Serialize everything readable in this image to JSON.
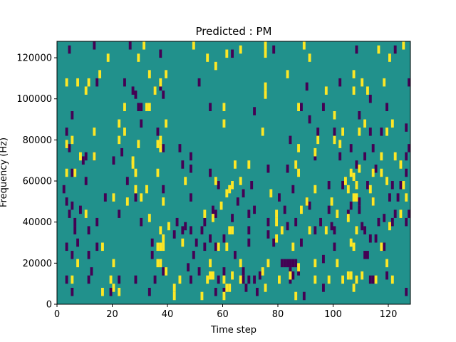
{
  "chart_data": {
    "type": "heatmap",
    "title": "Predicted : PM",
    "xlabel": "Time step",
    "ylabel": "Frequency (Hz)",
    "xlim": [
      0,
      128
    ],
    "ylim": [
      0,
      128000
    ],
    "x_ticks": [
      "0",
      "20",
      "40",
      "60",
      "80",
      "100",
      "120"
    ],
    "x_tick_values": [
      0,
      20,
      40,
      60,
      80,
      100,
      120
    ],
    "y_ticks": [
      "0",
      "20000",
      "40000",
      "60000",
      "80000",
      "100000",
      "120000"
    ],
    "y_tick_values": [
      0,
      20000,
      40000,
      60000,
      80000,
      100000,
      120000
    ],
    "colormap": "viridis",
    "grid": false,
    "colors": {
      "low": "#440154",
      "mid": "#21918c",
      "high": "#fde725"
    },
    "background_value": 0,
    "bin_height_hz": 4000,
    "cells_high": [
      [
        31,
        124000
      ],
      [
        75,
        124000
      ],
      [
        49,
        124000
      ],
      [
        66,
        122000
      ],
      [
        89,
        124000
      ],
      [
        116,
        122000
      ],
      [
        125,
        124000
      ],
      [
        18,
        118000
      ],
      [
        29,
        118000
      ],
      [
        54,
        118000
      ],
      [
        61,
        120000
      ],
      [
        75,
        120000
      ],
      [
        91,
        118000
      ],
      [
        120,
        118000
      ],
      [
        57,
        114000
      ],
      [
        15,
        110000
      ],
      [
        33,
        110000
      ],
      [
        39,
        110000
      ],
      [
        83,
        110000
      ],
      [
        107,
        110000
      ],
      [
        3,
        106000
      ],
      [
        7,
        106000
      ],
      [
        11,
        106000
      ],
      [
        37,
        106000
      ],
      [
        75,
        104000
      ],
      [
        110,
        106000
      ],
      [
        118,
        106000
      ],
      [
        10,
        102000
      ],
      [
        35,
        102000
      ],
      [
        75,
        100000
      ],
      [
        97,
        102000
      ],
      [
        107,
        102000
      ],
      [
        112,
        102000
      ],
      [
        32,
        94000
      ],
      [
        33,
        94000
      ],
      [
        24,
        94000
      ],
      [
        60,
        94000
      ],
      [
        87,
        94000
      ],
      [
        100,
        90000
      ],
      [
        22,
        86000
      ],
      [
        39,
        86000
      ],
      [
        60,
        86000
      ],
      [
        111,
        86000
      ],
      [
        121,
        86000
      ],
      [
        13,
        82000
      ],
      [
        24,
        82000
      ],
      [
        74,
        82000
      ],
      [
        103,
        82000
      ],
      [
        109,
        82000
      ],
      [
        119,
        82000
      ],
      [
        3,
        76000
      ],
      [
        5,
        78000
      ],
      [
        22,
        78000
      ],
      [
        37,
        78000
      ],
      [
        29,
        76000
      ],
      [
        36,
        76000
      ],
      [
        94,
        78000
      ],
      [
        100,
        78000
      ],
      [
        102,
        76000
      ],
      [
        8,
        70000
      ],
      [
        13,
        70000
      ],
      [
        27,
        68000
      ],
      [
        37,
        74000
      ],
      [
        87,
        74000
      ],
      [
        93,
        72000
      ],
      [
        117,
        70000
      ],
      [
        122,
        70000
      ],
      [
        3,
        62000
      ],
      [
        6,
        62000
      ],
      [
        27,
        66000
      ],
      [
        28,
        62000
      ],
      [
        36,
        62000
      ],
      [
        64,
        66000
      ],
      [
        69,
        66000
      ],
      [
        86,
        66000
      ],
      [
        87,
        62000
      ],
      [
        106,
        62000
      ],
      [
        107,
        60000
      ],
      [
        109,
        64000
      ],
      [
        114,
        62000
      ],
      [
        117,
        62000
      ],
      [
        124,
        66000
      ],
      [
        28,
        54000
      ],
      [
        32,
        54000
      ],
      [
        46,
        58000
      ],
      [
        57,
        58000
      ],
      [
        62,
        54000
      ],
      [
        63,
        56000
      ],
      [
        66,
        58000
      ],
      [
        93,
        54000
      ],
      [
        104,
        58000
      ],
      [
        105,
        54000
      ],
      [
        108,
        56000
      ],
      [
        113,
        54000
      ],
      [
        119,
        58000
      ],
      [
        125,
        56000
      ],
      [
        20,
        50000
      ],
      [
        25,
        48000
      ],
      [
        30,
        50000
      ],
      [
        38,
        48000
      ],
      [
        61,
        52000
      ],
      [
        77,
        52000
      ],
      [
        90,
        48000
      ],
      [
        99,
        48000
      ],
      [
        107,
        50000
      ],
      [
        108,
        50000
      ],
      [
        114,
        48000
      ],
      [
        126,
        50000
      ],
      [
        10,
        42000
      ],
      [
        33,
        40000
      ],
      [
        53,
        42000
      ],
      [
        56,
        40000
      ],
      [
        59,
        46000
      ],
      [
        79,
        42000
      ],
      [
        88,
        44000
      ],
      [
        101,
        42000
      ],
      [
        105,
        40000
      ],
      [
        124,
        42000
      ],
      [
        37,
        34000
      ],
      [
        38,
        30000
      ],
      [
        40,
        36000
      ],
      [
        62,
        34000
      ],
      [
        63,
        34000
      ],
      [
        79,
        38000
      ],
      [
        81,
        34000
      ],
      [
        91,
        34000
      ],
      [
        97,
        34000
      ],
      [
        108,
        34000
      ],
      [
        120,
        36000
      ],
      [
        16,
        26000
      ],
      [
        36,
        26000
      ],
      [
        37,
        26000
      ],
      [
        38,
        26000
      ],
      [
        45,
        28000
      ],
      [
        58,
        26000
      ],
      [
        61,
        26000
      ],
      [
        79,
        30000
      ],
      [
        85,
        26000
      ],
      [
        106,
        28000
      ],
      [
        107,
        26000
      ],
      [
        117,
        26000
      ],
      [
        7,
        18000
      ],
      [
        20,
        18000
      ],
      [
        36,
        18000
      ],
      [
        37,
        18000
      ],
      [
        55,
        18000
      ],
      [
        66,
        18000
      ],
      [
        76,
        18000
      ],
      [
        87,
        16000
      ],
      [
        93,
        18000
      ],
      [
        101,
        18000
      ],
      [
        119,
        18000
      ],
      [
        39,
        14000
      ],
      [
        55,
        12000
      ],
      [
        56,
        12000
      ],
      [
        63,
        12000
      ],
      [
        74,
        14000
      ],
      [
        84,
        12000
      ],
      [
        98,
        10000
      ],
      [
        105,
        12000
      ],
      [
        106,
        12000
      ],
      [
        110,
        12000
      ],
      [
        5,
        10000
      ],
      [
        19,
        10000
      ],
      [
        42,
        6000
      ],
      [
        44,
        10000
      ],
      [
        54,
        10000
      ],
      [
        60,
        10000
      ],
      [
        61,
        6000
      ],
      [
        62,
        6000
      ],
      [
        66,
        10000
      ],
      [
        80,
        10000
      ],
      [
        93,
        10000
      ],
      [
        103,
        10000
      ],
      [
        108,
        10000
      ],
      [
        115,
        10000
      ],
      [
        121,
        10000
      ],
      [
        16,
        4000
      ],
      [
        20,
        6000
      ],
      [
        22,
        4000
      ],
      [
        42,
        2000
      ],
      [
        52,
        2000
      ],
      [
        60,
        2000
      ],
      [
        75,
        6000
      ],
      [
        86,
        2000
      ],
      [
        107,
        6000
      ]
    ],
    "cells_low": [
      [
        4,
        122000
      ],
      [
        13,
        124000
      ],
      [
        26,
        124000
      ],
      [
        37,
        120000
      ],
      [
        63,
        120000
      ],
      [
        78,
        122000
      ],
      [
        108,
        122000
      ],
      [
        122,
        122000
      ],
      [
        14,
        106000
      ],
      [
        24,
        106000
      ],
      [
        37,
        104000
      ],
      [
        51,
        106000
      ],
      [
        90,
        104000
      ],
      [
        102,
        106000
      ],
      [
        127,
        106000
      ],
      [
        27,
        102000
      ],
      [
        28,
        100000
      ],
      [
        35,
        102000
      ],
      [
        38,
        100000
      ],
      [
        113,
        98000
      ],
      [
        5,
        90000
      ],
      [
        29,
        94000
      ],
      [
        30,
        94000
      ],
      [
        55,
        94000
      ],
      [
        71,
        92000
      ],
      [
        88,
        94000
      ],
      [
        96,
        94000
      ],
      [
        119,
        94000
      ],
      [
        30,
        86000
      ],
      [
        91,
        88000
      ],
      [
        109,
        90000
      ],
      [
        126,
        84000
      ],
      [
        3,
        82000
      ],
      [
        36,
        82000
      ],
      [
        94,
        82000
      ],
      [
        100,
        82000
      ],
      [
        113,
        82000
      ],
      [
        117,
        82000
      ],
      [
        4,
        74000
      ],
      [
        23,
        72000
      ],
      [
        38,
        74000
      ],
      [
        44,
        74000
      ],
      [
        84,
        78000
      ],
      [
        106,
        74000
      ],
      [
        114,
        74000
      ],
      [
        127,
        74000
      ],
      [
        9,
        68000
      ],
      [
        10,
        70000
      ],
      [
        13,
        70000
      ],
      [
        20,
        68000
      ],
      [
        48,
        70000
      ],
      [
        93,
        70000
      ],
      [
        102,
        70000
      ],
      [
        111,
        70000
      ],
      [
        126,
        70000
      ],
      [
        5,
        62000
      ],
      [
        45,
        66000
      ],
      [
        48,
        64000
      ],
      [
        55,
        62000
      ],
      [
        76,
        64000
      ],
      [
        83,
        64000
      ],
      [
        108,
        66000
      ],
      [
        115,
        64000
      ],
      [
        126,
        62000
      ],
      [
        2,
        54000
      ],
      [
        10,
        58000
      ],
      [
        25,
        58000
      ],
      [
        38,
        54000
      ],
      [
        58,
        56000
      ],
      [
        70,
        56000
      ],
      [
        85,
        54000
      ],
      [
        98,
        56000
      ],
      [
        103,
        56000
      ],
      [
        112,
        56000
      ],
      [
        121,
        56000
      ],
      [
        124,
        56000
      ],
      [
        3,
        48000
      ],
      [
        5,
        46000
      ],
      [
        17,
        50000
      ],
      [
        28,
        50000
      ],
      [
        48,
        50000
      ],
      [
        65,
        48000
      ],
      [
        67,
        52000
      ],
      [
        80,
        50000
      ],
      [
        90,
        48000
      ],
      [
        106,
        46000
      ],
      [
        109,
        48000
      ],
      [
        114,
        48000
      ],
      [
        120,
        50000
      ],
      [
        123,
        50000
      ],
      [
        4,
        42000
      ],
      [
        8,
        44000
      ],
      [
        22,
        42000
      ],
      [
        56,
        44000
      ],
      [
        57,
        42000
      ],
      [
        63,
        40000
      ],
      [
        69,
        42000
      ],
      [
        71,
        44000
      ],
      [
        82,
        44000
      ],
      [
        91,
        46000
      ],
      [
        98,
        44000
      ],
      [
        105,
        42000
      ],
      [
        109,
        44000
      ],
      [
        118,
        40000
      ],
      [
        122,
        42000
      ],
      [
        127,
        42000
      ],
      [
        6,
        38000
      ],
      [
        14,
        38000
      ],
      [
        30,
        38000
      ],
      [
        43,
        38000
      ],
      [
        46,
        36000
      ],
      [
        48,
        34000
      ],
      [
        53,
        38000
      ],
      [
        76,
        38000
      ],
      [
        83,
        36000
      ],
      [
        86,
        38000
      ],
      [
        95,
        38000
      ],
      [
        99,
        36000
      ],
      [
        110,
        36000
      ],
      [
        116,
        38000
      ],
      [
        121,
        38000
      ],
      [
        126,
        38000
      ],
      [
        6,
        34000
      ],
      [
        11,
        34000
      ],
      [
        42,
        32000
      ],
      [
        45,
        34000
      ],
      [
        52,
        34000
      ],
      [
        55,
        30000
      ],
      [
        60,
        30000
      ],
      [
        69,
        34000
      ],
      [
        76,
        32000
      ],
      [
        93,
        34000
      ],
      [
        100,
        34000
      ],
      [
        111,
        34000
      ],
      [
        3,
        26000
      ],
      [
        7,
        28000
      ],
      [
        14,
        26000
      ],
      [
        34,
        28000
      ],
      [
        50,
        28000
      ],
      [
        53,
        26000
      ],
      [
        57,
        26000
      ],
      [
        69,
        28000
      ],
      [
        78,
        28000
      ],
      [
        88,
        28000
      ],
      [
        100,
        26000
      ],
      [
        113,
        30000
      ],
      [
        115,
        30000
      ],
      [
        118,
        26000
      ],
      [
        5,
        22000
      ],
      [
        11,
        22000
      ],
      [
        34,
        22000
      ],
      [
        49,
        22000
      ],
      [
        64,
        22000
      ],
      [
        81,
        18000
      ],
      [
        82,
        18000
      ],
      [
        83,
        18000
      ],
      [
        84,
        18000
      ],
      [
        85,
        18000
      ],
      [
        86,
        18000
      ],
      [
        87,
        14000
      ],
      [
        96,
        20000
      ],
      [
        111,
        22000
      ],
      [
        112,
        22000
      ],
      [
        12,
        14000
      ],
      [
        38,
        14000
      ],
      [
        47,
        16000
      ],
      [
        51,
        14000
      ],
      [
        60,
        14000
      ],
      [
        67,
        14000
      ],
      [
        69,
        10000
      ],
      [
        73,
        12000
      ],
      [
        84,
        14000
      ],
      [
        85,
        12000
      ],
      [
        119,
        12000
      ],
      [
        3,
        10000
      ],
      [
        11,
        10000
      ],
      [
        22,
        10000
      ],
      [
        28,
        10000
      ],
      [
        35,
        10000
      ],
      [
        48,
        10000
      ],
      [
        58,
        10000
      ],
      [
        67,
        10000
      ],
      [
        71,
        10000
      ],
      [
        84,
        10000
      ],
      [
        108,
        10000
      ],
      [
        113,
        10000
      ],
      [
        114,
        10000
      ],
      [
        5,
        4000
      ],
      [
        19,
        4000
      ],
      [
        33,
        4000
      ],
      [
        57,
        4000
      ],
      [
        60,
        4000
      ],
      [
        68,
        6000
      ],
      [
        72,
        4000
      ],
      [
        89,
        2000
      ],
      [
        96,
        6000
      ],
      [
        126,
        4000
      ]
    ]
  }
}
